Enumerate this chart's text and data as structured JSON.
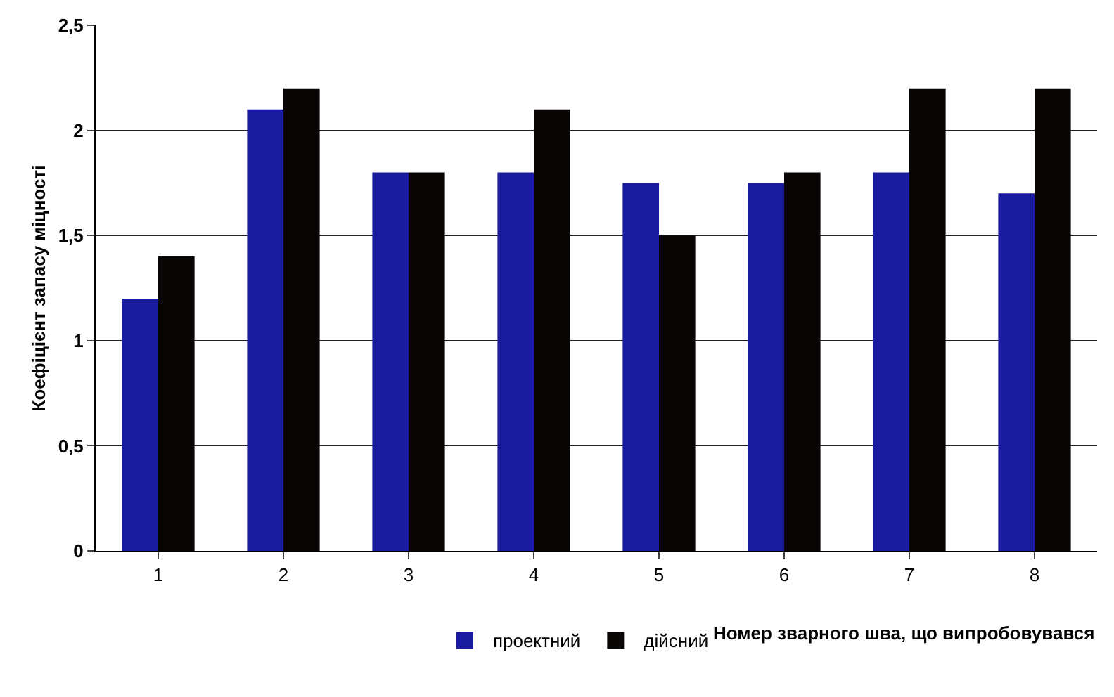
{
  "chart_data": {
    "type": "bar",
    "xlabel": "Номер зварного шва, що випробовувався",
    "ylabel": "Коефіцієнт запасу міцності",
    "categories": [
      "1",
      "2",
      "3",
      "4",
      "5",
      "6",
      "7",
      "8"
    ],
    "series": [
      {
        "name": "проектний",
        "color": "#1a1a9e",
        "values": [
          1.2,
          2.1,
          1.8,
          1.8,
          1.75,
          1.75,
          1.8,
          1.7
        ]
      },
      {
        "name": "дійсний",
        "color": "#0a0505",
        "values": [
          1.4,
          2.2,
          1.8,
          2.1,
          1.5,
          1.8,
          2.2,
          2.2
        ]
      }
    ],
    "ylim": [
      0,
      2.5
    ],
    "yticks": [
      {
        "value": 0,
        "label": "0"
      },
      {
        "value": 0.5,
        "label": "0,5"
      },
      {
        "value": 1,
        "label": "1"
      },
      {
        "value": 1.5,
        "label": "1,5"
      },
      {
        "value": 2,
        "label": "2"
      },
      {
        "value": 2.5,
        "label": "2,5"
      }
    ],
    "grid": "y",
    "legend": "bottom"
  }
}
